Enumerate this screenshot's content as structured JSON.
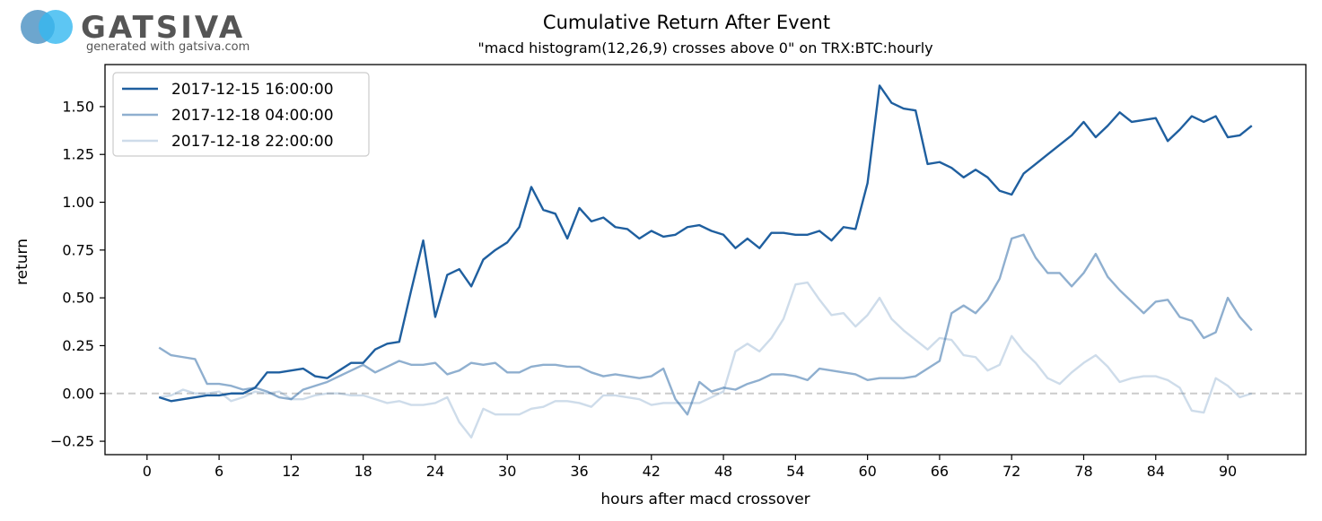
{
  "logo": {
    "wordmark": "GATSIVA",
    "tagline": "generated with gatsiva.com",
    "colors": [
      "#1f77b4",
      "#35b8f0"
    ]
  },
  "chart_data": {
    "type": "line",
    "title": "Cumulative Return After Event",
    "subtitle": "\"macd histogram(12,26,9) crosses above 0\" on TRX:BTC:hourly",
    "xlabel": "hours after macd crossover",
    "ylabel": "return",
    "xlim": [
      -3.5,
      96.5
    ],
    "ylim": [
      -0.32,
      1.72
    ],
    "xticks": [
      0,
      6,
      12,
      18,
      24,
      30,
      36,
      42,
      48,
      54,
      60,
      66,
      72,
      78,
      84,
      90
    ],
    "yticks": [
      -0.25,
      0.0,
      0.25,
      0.5,
      0.75,
      1.0,
      1.25,
      1.5
    ],
    "ytick_labels": [
      "−0.25",
      "0.00",
      "0.25",
      "0.50",
      "0.75",
      "1.00",
      "1.25",
      "1.50"
    ],
    "reference_line": {
      "y": 0,
      "style": "dashed",
      "color": "#cccccc"
    },
    "legend_position": "top-left",
    "grid": false,
    "series": [
      {
        "name": "2017-12-15 16:00:00",
        "color": "#1f5f9f",
        "opacity": 1.0,
        "start_x": 1,
        "values": [
          -0.02,
          -0.04,
          -0.03,
          -0.02,
          -0.01,
          -0.01,
          0.0,
          0.0,
          0.03,
          0.11,
          0.11,
          0.12,
          0.13,
          0.09,
          0.08,
          0.12,
          0.16,
          0.16,
          0.23,
          0.26,
          0.27,
          0.54,
          0.8,
          0.4,
          0.62,
          0.65,
          0.56,
          0.7,
          0.75,
          0.79,
          0.87,
          1.08,
          0.96,
          0.94,
          0.81,
          0.97,
          0.9,
          0.92,
          0.87,
          0.86,
          0.81,
          0.85,
          0.82,
          0.83,
          0.87,
          0.88,
          0.85,
          0.83,
          0.76,
          0.81,
          0.76,
          0.84,
          0.84,
          0.83,
          0.83,
          0.85,
          0.8,
          0.87,
          0.86,
          1.1,
          1.61,
          1.52,
          1.49,
          1.48,
          1.2,
          1.21,
          1.18,
          1.13,
          1.17,
          1.13,
          1.06,
          1.04,
          1.15,
          1.2,
          1.25,
          1.3,
          1.35,
          1.42,
          1.34,
          1.4,
          1.47,
          1.42,
          1.43,
          1.44,
          1.32,
          1.38,
          1.45,
          1.42,
          1.45,
          1.34,
          1.35,
          1.4
        ]
      },
      {
        "name": "2017-12-18 04:00:00",
        "color": "#1f5f9f",
        "opacity": 0.5,
        "start_x": 1,
        "values": [
          0.24,
          0.2,
          0.19,
          0.18,
          0.05,
          0.05,
          0.04,
          0.02,
          0.03,
          0.01,
          -0.02,
          -0.03,
          0.02,
          0.04,
          0.06,
          0.09,
          0.12,
          0.15,
          0.11,
          0.14,
          0.17,
          0.15,
          0.15,
          0.16,
          0.1,
          0.12,
          0.16,
          0.15,
          0.16,
          0.11,
          0.11,
          0.14,
          0.15,
          0.15,
          0.14,
          0.14,
          0.11,
          0.09,
          0.1,
          0.09,
          0.08,
          0.09,
          0.13,
          -0.03,
          -0.11,
          0.06,
          0.01,
          0.03,
          0.02,
          0.05,
          0.07,
          0.1,
          0.1,
          0.09,
          0.07,
          0.13,
          0.12,
          0.11,
          0.1,
          0.07,
          0.08,
          0.08,
          0.08,
          0.09,
          0.13,
          0.17,
          0.42,
          0.46,
          0.42,
          0.49,
          0.6,
          0.81,
          0.83,
          0.71,
          0.63,
          0.63,
          0.56,
          0.63,
          0.73,
          0.61,
          0.54,
          0.48,
          0.42,
          0.48,
          0.49,
          0.4,
          0.38,
          0.29,
          0.32,
          0.5,
          0.4,
          0.33
        ]
      },
      {
        "name": "2017-12-18 22:00:00",
        "color": "#1f5f9f",
        "opacity": 0.22,
        "start_x": 1,
        "values": [
          -0.02,
          -0.01,
          0.02,
          0.0,
          0.0,
          0.01,
          -0.04,
          -0.02,
          0.01,
          0.0,
          0.01,
          -0.03,
          -0.03,
          -0.01,
          0.0,
          0.0,
          -0.01,
          -0.01,
          -0.03,
          -0.05,
          -0.04,
          -0.06,
          -0.06,
          -0.05,
          -0.02,
          -0.15,
          -0.23,
          -0.08,
          -0.11,
          -0.11,
          -0.11,
          -0.08,
          -0.07,
          -0.04,
          -0.04,
          -0.05,
          -0.07,
          -0.01,
          -0.01,
          -0.02,
          -0.03,
          -0.06,
          -0.05,
          -0.05,
          -0.05,
          -0.05,
          -0.02,
          0.01,
          0.22,
          0.26,
          0.22,
          0.29,
          0.39,
          0.57,
          0.58,
          0.49,
          0.41,
          0.42,
          0.35,
          0.41,
          0.5,
          0.39,
          0.33,
          0.28,
          0.23,
          0.29,
          0.28,
          0.2,
          0.19,
          0.12,
          0.15,
          0.3,
          0.22,
          0.16,
          0.08,
          0.05,
          0.11,
          0.16,
          0.2,
          0.14,
          0.06,
          0.08,
          0.09,
          0.09,
          0.07,
          0.03,
          -0.09,
          -0.1,
          0.08,
          0.04,
          -0.02,
          0.0
        ]
      }
    ]
  }
}
